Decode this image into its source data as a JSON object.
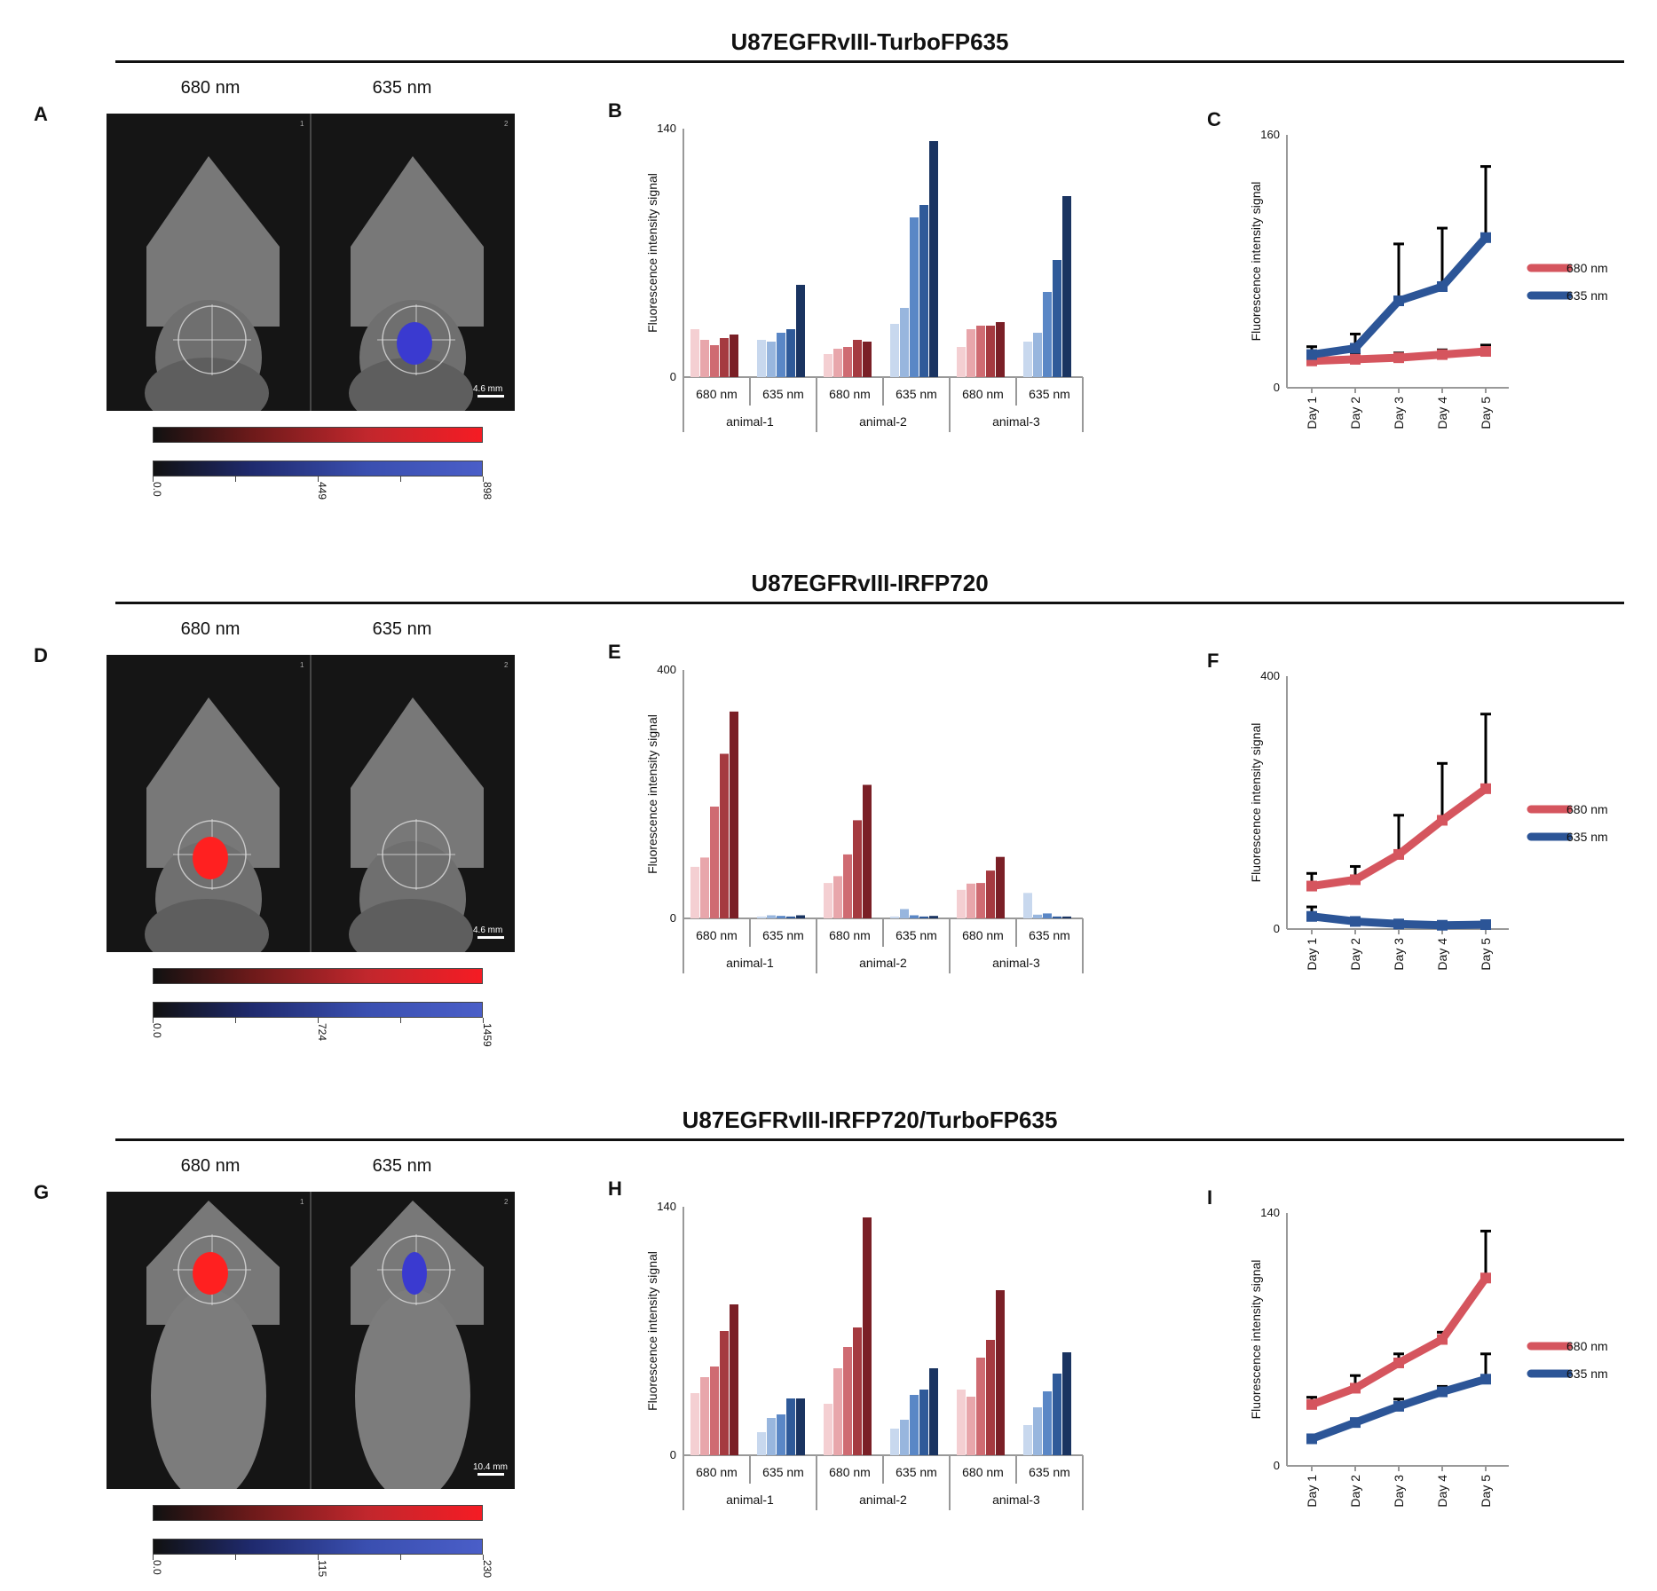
{
  "sections": [
    {
      "title": "U87EGFRvIII-TurboFP635",
      "image_panel": {
        "letter": "A",
        "label_left": "680 nm",
        "label_right": "635 nm",
        "corner_left": "1",
        "corner_right": "2",
        "scale_bar": "4.6 mm",
        "signal": "blue",
        "colorbar_ticks": [
          "0.0",
          "449",
          "898"
        ]
      },
      "bar_letter": "B",
      "line_letter": "C"
    },
    {
      "title": "U87EGFRvIII-IRFP720",
      "image_panel": {
        "letter": "D",
        "label_left": "680 nm",
        "label_right": "635 nm",
        "corner_left": "1",
        "corner_right": "2",
        "scale_bar": "4.6 mm",
        "signal": "red",
        "colorbar_ticks": [
          "0.0",
          "724",
          "1459"
        ]
      },
      "bar_letter": "E",
      "line_letter": "F"
    },
    {
      "title": "U87EGFRvIII-IRFP720/TurboFP635",
      "image_panel": {
        "letter": "G",
        "label_left": "680 nm",
        "label_right": "635 nm",
        "corner_left": "1",
        "corner_right": "2",
        "scale_bar": "10.4 mm",
        "signal": "both",
        "colorbar_ticks": [
          "0.0",
          "115",
          "230"
        ]
      },
      "bar_letter": "H",
      "line_letter": "I"
    }
  ],
  "colors": {
    "red_shades": [
      "#f4cfd2",
      "#e8a6ab",
      "#cf6b72",
      "#a53a40",
      "#7a1f26"
    ],
    "blue_shades": [
      "#c8d8ee",
      "#98b6de",
      "#5a87c6",
      "#2f5a99",
      "#1a3461"
    ],
    "line_red": "#d5555e",
    "line_blue": "#2c5597"
  },
  "chart_data": [
    {
      "type": "bar",
      "panel": "B",
      "ylabel": "Fluorescence intensity signal",
      "ylim": [
        0,
        140
      ],
      "yticks": [
        "0",
        "140"
      ],
      "groups": [
        "animal-1",
        "animal-2",
        "animal-3"
      ],
      "subgroups": [
        "680 nm",
        "635 nm"
      ],
      "series": [
        {
          "group": "animal-1",
          "subgroup": "680 nm",
          "values": [
            27,
            21,
            18,
            22,
            24
          ]
        },
        {
          "group": "animal-1",
          "subgroup": "635 nm",
          "values": [
            21,
            20,
            25,
            27,
            52
          ]
        },
        {
          "group": "animal-2",
          "subgroup": "680 nm",
          "values": [
            13,
            16,
            17,
            21,
            20
          ]
        },
        {
          "group": "animal-2",
          "subgroup": "635 nm",
          "values": [
            30,
            39,
            90,
            97,
            133
          ]
        },
        {
          "group": "animal-3",
          "subgroup": "680 nm",
          "values": [
            17,
            27,
            29,
            29,
            31
          ]
        },
        {
          "group": "animal-3",
          "subgroup": "635 nm",
          "values": [
            20,
            25,
            48,
            66,
            102
          ]
        }
      ]
    },
    {
      "type": "line",
      "panel": "C",
      "ylabel": "Fluorescence intensity signal",
      "ylim": [
        0,
        160
      ],
      "yticks": [
        "0",
        "160"
      ],
      "x": [
        "Day 1",
        "Day 2",
        "Day 3",
        "Day 4",
        "Day 5"
      ],
      "series": [
        {
          "name": "680 nm",
          "values": [
            17,
            18,
            19,
            21,
            23
          ],
          "err": [
            4,
            3,
            3,
            3,
            4
          ]
        },
        {
          "name": "635 nm",
          "values": [
            21,
            25,
            55,
            64,
            95
          ],
          "err": [
            5,
            9,
            36,
            37,
            45
          ]
        }
      ],
      "legend": "right"
    },
    {
      "type": "bar",
      "panel": "E",
      "ylabel": "Fluorescence intensity signal",
      "ylim": [
        0,
        400
      ],
      "yticks": [
        "0",
        "400"
      ],
      "groups": [
        "animal-1",
        "animal-2",
        "animal-3"
      ],
      "subgroups": [
        "680 nm",
        "635 nm"
      ],
      "series": [
        {
          "group": "animal-1",
          "subgroup": "680 nm",
          "values": [
            83,
            98,
            180,
            265,
            333
          ]
        },
        {
          "group": "animal-1",
          "subgroup": "635 nm",
          "values": [
            3,
            5,
            4,
            3,
            5
          ]
        },
        {
          "group": "animal-2",
          "subgroup": "680 nm",
          "values": [
            57,
            68,
            103,
            158,
            215
          ]
        },
        {
          "group": "animal-2",
          "subgroup": "635 nm",
          "values": [
            3,
            15,
            5,
            3,
            4
          ]
        },
        {
          "group": "animal-3",
          "subgroup": "680 nm",
          "values": [
            46,
            56,
            57,
            77,
            99
          ]
        },
        {
          "group": "animal-3",
          "subgroup": "635 nm",
          "values": [
            41,
            6,
            8,
            3,
            3
          ]
        }
      ]
    },
    {
      "type": "line",
      "panel": "F",
      "ylabel": "Fluorescence intensity signal",
      "ylim": [
        0,
        400
      ],
      "yticks": [
        "0",
        "400"
      ],
      "x": [
        "Day 1",
        "Day 2",
        "Day 3",
        "Day 4",
        "Day 5"
      ],
      "series": [
        {
          "name": "680 nm",
          "values": [
            68,
            78,
            118,
            172,
            222
          ],
          "err": [
            20,
            21,
            62,
            90,
            118
          ]
        },
        {
          "name": "635 nm",
          "values": [
            20,
            12,
            8,
            6,
            7
          ],
          "err": [
            15,
            0,
            0,
            0,
            0
          ]
        }
      ],
      "legend": "right"
    },
    {
      "type": "bar",
      "panel": "H",
      "ylabel": "Fluorescence intensity signal",
      "ylim": [
        0,
        140
      ],
      "yticks": [
        "0",
        "140"
      ],
      "groups": [
        "animal-1",
        "animal-2",
        "animal-3"
      ],
      "subgroups": [
        "680 nm",
        "635 nm"
      ],
      "series": [
        {
          "group": "animal-1",
          "subgroup": "680 nm",
          "values": [
            35,
            44,
            50,
            70,
            85
          ]
        },
        {
          "group": "animal-1",
          "subgroup": "635 nm",
          "values": [
            13,
            21,
            23,
            32,
            32
          ]
        },
        {
          "group": "animal-2",
          "subgroup": "680 nm",
          "values": [
            29,
            49,
            61,
            72,
            134
          ]
        },
        {
          "group": "animal-2",
          "subgroup": "635 nm",
          "values": [
            15,
            20,
            34,
            37,
            49
          ]
        },
        {
          "group": "animal-3",
          "subgroup": "680 nm",
          "values": [
            37,
            33,
            55,
            65,
            93
          ]
        },
        {
          "group": "animal-3",
          "subgroup": "635 nm",
          "values": [
            17,
            27,
            36,
            46,
            58
          ]
        }
      ]
    },
    {
      "type": "line",
      "panel": "I",
      "ylabel": "Fluorescence intensity signal",
      "ylim": [
        0,
        140
      ],
      "yticks": [
        "0",
        "140"
      ],
      "x": [
        "Day 1",
        "Day 2",
        "Day 3",
        "Day 4",
        "Day 5"
      ],
      "series": [
        {
          "name": "680 nm",
          "values": [
            34,
            43,
            57,
            70,
            104
          ],
          "err": [
            4,
            7,
            5,
            4,
            26
          ]
        },
        {
          "name": "635 nm",
          "values": [
            15,
            24,
            33,
            41,
            48
          ],
          "err": [
            0,
            0,
            4,
            3,
            14
          ]
        }
      ],
      "legend": "right"
    }
  ]
}
